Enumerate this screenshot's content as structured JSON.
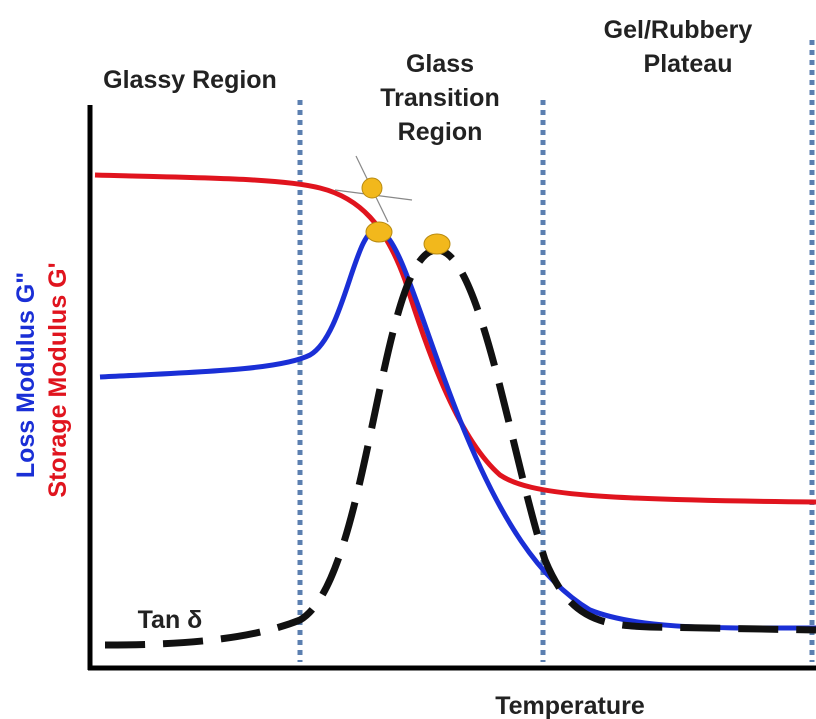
{
  "regions": {
    "glassy": "Glassy Region",
    "transition": [
      "Glass",
      "Transition",
      "Region"
    ],
    "plateau": [
      "Gel/Rubbery",
      "Plateau"
    ]
  },
  "axes": {
    "x_label": "Temperature",
    "loss_label": "Loss Modulus G\"",
    "storage_label": "Storage Modulus G'"
  },
  "curves": {
    "tan_delta": "Tan δ"
  }
}
